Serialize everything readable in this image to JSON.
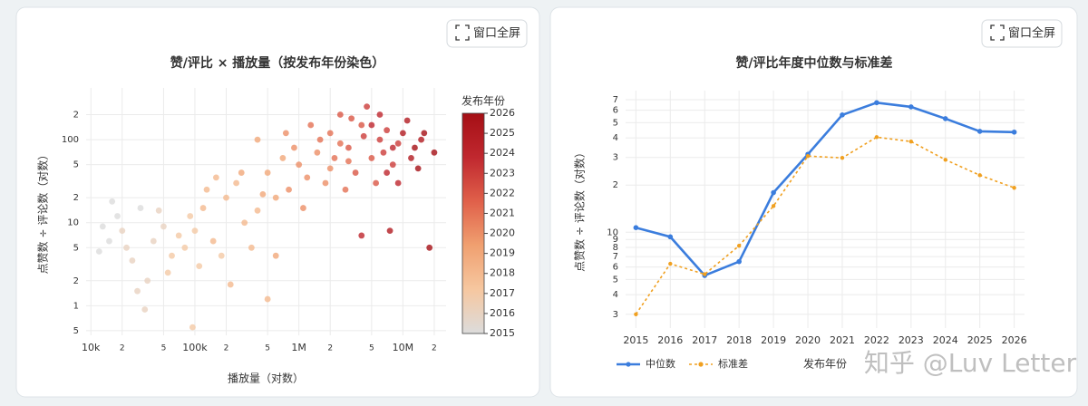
{
  "chart_data": [
    {
      "type": "scatter",
      "title": "赞/评比 × 播放量（按发布年份染色）",
      "xlabel": "播放量（对数）",
      "ylabel": "点赞数 ÷ 评论数（对数）",
      "xlog": true,
      "ylog": true,
      "grid": true,
      "xlim": [
        9000,
        26000000
      ],
      "xticks": [
        {
          "value": 10000,
          "label": "10k"
        },
        {
          "value": 20000,
          "label": "2"
        },
        {
          "value": 50000,
          "label": "5"
        },
        {
          "value": 100000,
          "label": "100k"
        },
        {
          "value": 200000,
          "label": "2"
        },
        {
          "value": 500000,
          "label": "5"
        },
        {
          "value": 1000000,
          "label": "1M"
        },
        {
          "value": 2000000,
          "label": "2"
        },
        {
          "value": 5000000,
          "label": "5"
        },
        {
          "value": 10000000,
          "label": "10M"
        },
        {
          "value": 20000000,
          "label": "2"
        }
      ],
      "ylim": [
        0.44,
        420
      ],
      "yticks": [
        {
          "value": 0.5,
          "label": "5"
        },
        1,
        2,
        5,
        10,
        {
          "value": 20,
          "label": "2"
        },
        {
          "value": 50,
          "label": "5"
        },
        100,
        {
          "value": 200,
          "label": "2"
        }
      ],
      "colorscale": [
        "#dcdcdc",
        "#f6c7a0",
        "#f0a070",
        "#e0604a",
        "#c0282f",
        "#a50f15"
      ],
      "colorbar": {
        "title": "发布年份",
        "range": [
          2015,
          2026
        ],
        "ticks": [
          2015,
          2016,
          2017,
          2018,
          2019,
          2020,
          2021,
          2022,
          2023,
          2024,
          2025,
          2026
        ]
      },
      "x": [
        15000,
        12000,
        20000,
        30000,
        25000,
        18000,
        40000,
        35000,
        50000,
        60000,
        45000,
        13000,
        22000,
        70000,
        28000,
        90000,
        33000,
        55000,
        80000,
        16000,
        100000,
        120000,
        150000,
        200000,
        180000,
        250000,
        300000,
        130000,
        95000,
        220000,
        350000,
        400000,
        160000,
        450000,
        110000,
        280000,
        500000,
        600000,
        500000,
        700000,
        800000,
        1000000,
        900000,
        1200000,
        600000,
        1500000,
        2000000,
        400000,
        1100000,
        750000,
        1800000,
        2500000,
        1300000,
        3000000,
        2000000,
        3000000,
        4000000,
        2500000,
        5000000,
        3500000,
        6000000,
        4500000,
        7000000,
        2200000,
        8000000,
        3200000,
        5500000,
        1600000,
        9000000,
        2800000,
        4200000,
        6500000,
        5000000,
        8000000,
        10000000,
        12000000,
        7000000,
        15000000,
        6000000,
        9000000,
        11000000,
        13000000,
        16000000,
        7500000,
        18000000,
        4000000,
        14000000,
        20000000
      ],
      "y": [
        6,
        4.5,
        8,
        15,
        3.5,
        12,
        6,
        2,
        9,
        4,
        14,
        9,
        5,
        7,
        1.5,
        12,
        0.9,
        2.5,
        5,
        18,
        8,
        15,
        6,
        20,
        4,
        30,
        10,
        25,
        0.55,
        1.8,
        5,
        14,
        35,
        22,
        3,
        40,
        1.2,
        4,
        40,
        60,
        25,
        50,
        80,
        35,
        20,
        70,
        45,
        100,
        15,
        120,
        30,
        90,
        150,
        55,
        120,
        80,
        150,
        200,
        60,
        40,
        100,
        250,
        130,
        60,
        50,
        180,
        30,
        100,
        90,
        25,
        110,
        70,
        150,
        80,
        120,
        60,
        40,
        100,
        200,
        30,
        170,
        80,
        120,
        8,
        5,
        7,
        45,
        70
      ],
      "years": [
        2015,
        2015,
        2016,
        2015,
        2016,
        2015,
        2016,
        2016,
        2016,
        2017,
        2016,
        2015,
        2016,
        2017,
        2016,
        2017,
        2016,
        2017,
        2017,
        2015,
        2017,
        2018,
        2018,
        2018,
        2017,
        2018,
        2018,
        2018,
        2017,
        2018,
        2018,
        2018,
        2018,
        2019,
        2017,
        2019,
        2018,
        2019,
        2019,
        2019,
        2020,
        2020,
        2020,
        2020,
        2019,
        2020,
        2020,
        2019,
        2020,
        2020,
        2020,
        2021,
        2021,
        2021,
        2021,
        2022,
        2022,
        2022,
        2022,
        2022,
        2023,
        2023,
        2023,
        2021,
        2023,
        2022,
        2022,
        2021,
        2023,
        2021,
        2023,
        2023,
        2024,
        2024,
        2025,
        2025,
        2024,
        2025,
        2024,
        2024,
        2025,
        2026,
        2026,
        2025,
        2026,
        2024,
        2026,
        2026
      ]
    },
    {
      "type": "line",
      "title": "赞/评比年度中位数与标准差",
      "xlabel": "发布年份",
      "ylabel": "点赞数 ÷ 评论数（对数）",
      "ylog": true,
      "grid": true,
      "legend": "bottom-left",
      "x": [
        2015,
        2016,
        2017,
        2018,
        2019,
        2020,
        2021,
        2022,
        2023,
        2024,
        2025,
        2026
      ],
      "xlim": [
        2014.7,
        2026.3
      ],
      "xticks": [
        2015,
        2016,
        2017,
        2018,
        2019,
        2020,
        2021,
        2022,
        2023,
        2024,
        2025,
        2026
      ],
      "ylim": [
        2.45,
        80
      ],
      "yticks": [
        3,
        4,
        5,
        6,
        7,
        8,
        9,
        10,
        {
          "value": 20,
          "label": "2"
        },
        {
          "value": 30,
          "label": "3"
        },
        {
          "value": 40,
          "label": "4"
        },
        {
          "value": 50,
          "label": "5"
        },
        {
          "value": 60,
          "label": "6"
        },
        {
          "value": 70,
          "label": "7"
        }
      ],
      "series": [
        {
          "name": "中位数",
          "color": "#3b7ddd",
          "dash": false,
          "values": [
            10.7,
            9.35,
            5.3,
            6.5,
            17.9,
            31.4,
            56,
            67,
            63,
            53,
            44,
            43.5
          ]
        },
        {
          "name": "标准差",
          "color": "#f0a020",
          "dash": true,
          "values": [
            3.0,
            6.3,
            5.4,
            8.2,
            14.7,
            30.6,
            29.8,
            40.4,
            37.9,
            29.0,
            23.1,
            19.2
          ]
        }
      ]
    }
  ],
  "buttons": [
    "窗口全屏",
    "窗口全屏"
  ],
  "watermark": "知乎 @Luv Letter"
}
